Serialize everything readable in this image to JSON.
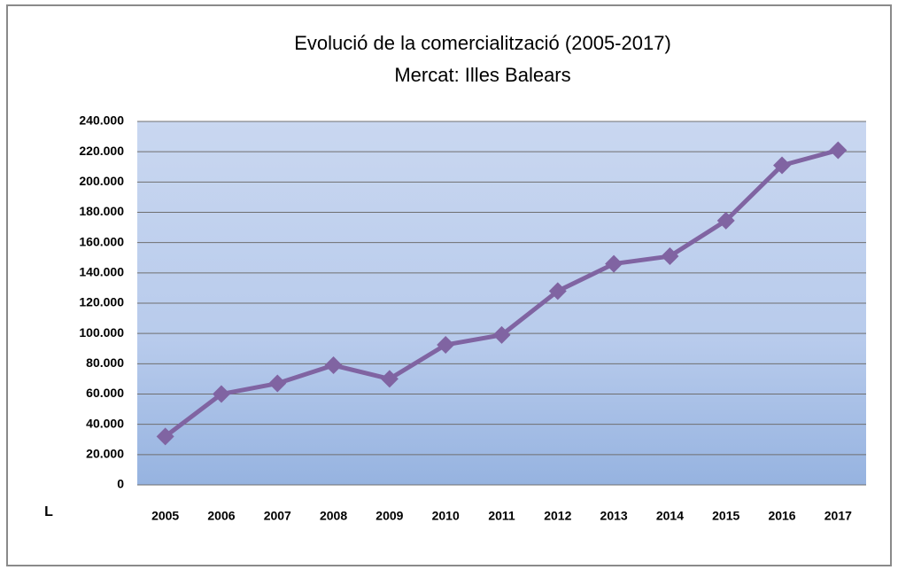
{
  "chart_data": {
    "type": "line",
    "title": "Evolució de la comercialització (2005-2017)",
    "subtitle": "Mercat: Illes Balears",
    "ylabel": "L",
    "categories": [
      "2005",
      "2006",
      "2007",
      "2008",
      "2009",
      "2010",
      "2011",
      "2012",
      "2013",
      "2014",
      "2015",
      "2016",
      "2017"
    ],
    "series": [
      {
        "name": "Illes Balears",
        "color": "#8064a2",
        "values": [
          32000,
          60000,
          67000,
          79000,
          70000,
          92500,
          99000,
          128000,
          146000,
          151000,
          174500,
          211000,
          221000
        ]
      }
    ],
    "ylim": [
      0,
      240000
    ],
    "yticks": [
      0,
      {
        "value": 20000,
        "label": "20.000"
      },
      {
        "value": 40000,
        "label": "40.000"
      },
      {
        "value": 60000,
        "label": "60.000"
      },
      {
        "value": 80000,
        "label": "80.000"
      },
      {
        "value": 100000,
        "label": "100.000"
      },
      {
        "value": 120000,
        "label": "120.000"
      },
      {
        "value": 140000,
        "label": "140.000"
      },
      {
        "value": 160000,
        "label": "160.000"
      },
      {
        "value": 180000,
        "label": "180.000"
      },
      {
        "value": 200000,
        "label": "200.000"
      },
      {
        "value": 220000,
        "label": "220.000"
      },
      {
        "value": 240000,
        "label": "240.000"
      }
    ],
    "grid": true
  }
}
